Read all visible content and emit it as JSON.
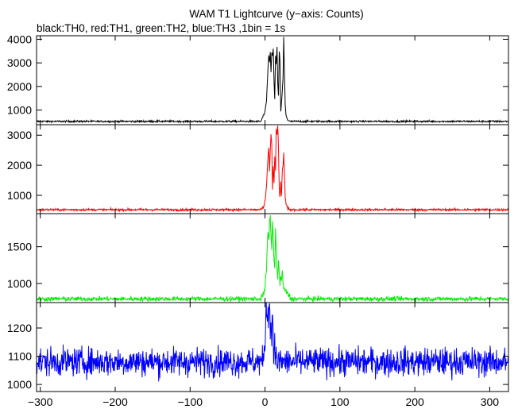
{
  "chart_data": {
    "type": "line",
    "title": "WAM T1 Lightcurve (y−axis: Counts)",
    "subtitle": "black:TH0, red:TH1, green:TH2, blue:TH3 ,1bin = 1s",
    "xlim": [
      -305,
      325
    ],
    "x_ticks": [
      -300,
      -200,
      -100,
      0,
      100,
      200,
      300
    ],
    "x_tick_labels": [
      "−300",
      "−200",
      "−100",
      "0",
      "100",
      "200",
      "300"
    ],
    "grid": false,
    "legend": "subtitle",
    "panels": [
      {
        "name": "TH0",
        "color": "#000000",
        "ylim": [
          380,
          4150
        ],
        "y_ticks": [
          1000,
          2000,
          3000,
          4000
        ],
        "y_tick_labels": [
          "1000",
          "2000",
          "3000",
          "4000"
        ],
        "baseline": 520,
        "noise": 28,
        "burst_points": [
          [
            -5,
            560
          ],
          [
            -3,
            700
          ],
          [
            0,
            900
          ],
          [
            2,
            1400
          ],
          [
            4,
            2800
          ],
          [
            5,
            3300
          ],
          [
            6,
            3050
          ],
          [
            7,
            3500
          ],
          [
            8,
            2600
          ],
          [
            9,
            3400
          ],
          [
            10,
            3300
          ],
          [
            11,
            3600
          ],
          [
            12,
            2200
          ],
          [
            13,
            1500
          ],
          [
            14,
            3300
          ],
          [
            15,
            2900
          ],
          [
            16,
            3700
          ],
          [
            17,
            2100
          ],
          [
            18,
            1600
          ],
          [
            19,
            3500
          ],
          [
            20,
            3100
          ],
          [
            21,
            900
          ],
          [
            22,
            1300
          ],
          [
            23,
            1800
          ],
          [
            24,
            2300
          ],
          [
            25,
            4100
          ],
          [
            26,
            2400
          ],
          [
            27,
            1200
          ],
          [
            28,
            800
          ],
          [
            30,
            600
          ],
          [
            32,
            540
          ]
        ]
      },
      {
        "name": "TH1",
        "color": "#ff0000",
        "ylim": [
          390,
          3350
        ],
        "y_ticks": [
          1000,
          2000,
          3000
        ],
        "y_tick_labels": [
          "1000",
          "2000",
          "3000"
        ],
        "baseline": 520,
        "noise": 28,
        "burst_points": [
          [
            -5,
            540
          ],
          [
            -2,
            580
          ],
          [
            0,
            800
          ],
          [
            2,
            1300
          ],
          [
            4,
            2300
          ],
          [
            5,
            2600
          ],
          [
            6,
            1800
          ],
          [
            7,
            2500
          ],
          [
            8,
            3000
          ],
          [
            9,
            2700
          ],
          [
            10,
            1200
          ],
          [
            11,
            2000
          ],
          [
            12,
            1400
          ],
          [
            13,
            2300
          ],
          [
            14,
            1800
          ],
          [
            15,
            3200
          ],
          [
            16,
            3000
          ],
          [
            17,
            3300
          ],
          [
            18,
            2600
          ],
          [
            19,
            1200
          ],
          [
            20,
            900
          ],
          [
            21,
            1400
          ],
          [
            22,
            1000
          ],
          [
            23,
            1800
          ],
          [
            24,
            2000
          ],
          [
            25,
            2400
          ],
          [
            26,
            1700
          ],
          [
            27,
            900
          ],
          [
            28,
            700
          ],
          [
            30,
            580
          ],
          [
            32,
            540
          ]
        ]
      },
      {
        "name": "TH2",
        "color": "#00ee00",
        "ylim": [
          740,
          1950
        ],
        "y_ticks": [
          1000,
          1500
        ],
        "y_tick_labels": [
          "1000",
          "1500"
        ],
        "baseline": 790,
        "noise": 22,
        "burst_points": [
          [
            -5,
            800
          ],
          [
            -2,
            850
          ],
          [
            0,
            950
          ],
          [
            2,
            1200
          ],
          [
            3,
            1500
          ],
          [
            4,
            1700
          ],
          [
            5,
            1600
          ],
          [
            6,
            1800
          ],
          [
            7,
            1900
          ],
          [
            8,
            1650
          ],
          [
            9,
            1500
          ],
          [
            10,
            1850
          ],
          [
            11,
            1600
          ],
          [
            12,
            1300
          ],
          [
            13,
            1200
          ],
          [
            14,
            1750
          ],
          [
            15,
            1500
          ],
          [
            16,
            1200
          ],
          [
            17,
            1050
          ],
          [
            18,
            1300
          ],
          [
            19,
            1150
          ],
          [
            20,
            1000
          ],
          [
            21,
            1100
          ],
          [
            22,
            1050
          ],
          [
            23,
            1150
          ],
          [
            24,
            1000
          ],
          [
            25,
            950
          ],
          [
            27,
            900
          ],
          [
            30,
            860
          ],
          [
            33,
            830
          ]
        ]
      },
      {
        "name": "TH3",
        "color": "#0000ff",
        "ylim": [
          975,
          1290
        ],
        "y_ticks": [
          1000,
          1100,
          1200
        ],
        "y_tick_labels": [
          "1000",
          "1100",
          "1200"
        ],
        "baseline": 1080,
        "noise": 36,
        "burst_points": [
          [
            -2,
            1100
          ],
          [
            0,
            1160
          ],
          [
            1,
            1220
          ],
          [
            2,
            1290
          ],
          [
            3,
            1230
          ],
          [
            4,
            1300
          ],
          [
            5,
            1250
          ],
          [
            6,
            1290
          ],
          [
            7,
            1180
          ],
          [
            8,
            1240
          ],
          [
            9,
            1150
          ],
          [
            10,
            1280
          ],
          [
            11,
            1190
          ],
          [
            12,
            1120
          ],
          [
            14,
            1100
          ],
          [
            16,
            1090
          ]
        ]
      }
    ]
  }
}
